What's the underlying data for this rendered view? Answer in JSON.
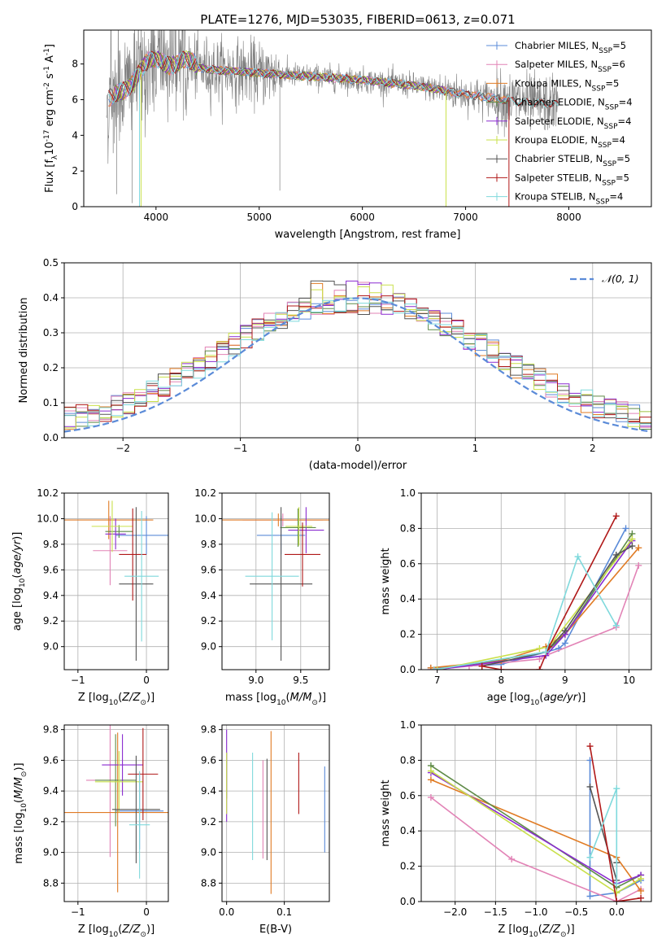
{
  "figure_title": "PLATE=1276, MJD=53035, FIBERID=0613, z=0.071",
  "colors": {
    "Chabrier MILES": "#5b8bd8",
    "Salpeter MILES": "#e283b6",
    "Kroupa MILES": "#e07b24",
    "Chabrier ELODIE": "#5f8b48",
    "Salpeter ELODIE": "#8a2bd0",
    "Kroupa ELODIE": "#c9e04a",
    "Chabrier STELIB": "#555555",
    "Salpeter STELIB": "#b01818",
    "Kroupa STELIB": "#7fd9dc",
    "data": "#7f7f7f",
    "gauss": "#5b8bd8",
    "grid": "#b0b0b0"
  },
  "chart_data": [
    {
      "id": "spectrum",
      "type": "line",
      "title": "PLATE=1276, MJD=53035, FIBERID=0613, z=0.071",
      "xlabel": "wavelength [Angstrom, rest frame]",
      "ylabel_parts": [
        "Flux [f",
        "λ",
        "10",
        "-17",
        " erg cm",
        "-2",
        " s",
        "-1",
        " A",
        "-1",
        "]"
      ],
      "xlim": [
        3300,
        8800
      ],
      "ylim": [
        0,
        9.9
      ],
      "xticks": [
        4000,
        5000,
        6000,
        7000,
        8000
      ],
      "yticks": [
        0,
        2,
        4,
        6,
        8
      ],
      "grid": false,
      "legend_position": "upper-right",
      "legend": [
        {
          "model": "Chabrier MILES",
          "nssp": "5"
        },
        {
          "model": "Salpeter MILES",
          "nssp": "6"
        },
        {
          "model": "Kroupa MILES",
          "nssp": "5"
        },
        {
          "model": "Chabrier ELODIE",
          "nssp": "4"
        },
        {
          "model": "Salpeter ELODIE",
          "nssp": "4"
        },
        {
          "model": "Kroupa ELODIE",
          "nssp": "4"
        },
        {
          "model": "Chabrier STELIB",
          "nssp": "5"
        },
        {
          "model": "Salpeter STELIB",
          "nssp": "5"
        },
        {
          "model": "Kroupa STELIB",
          "nssp": "4"
        }
      ],
      "legend_prefix": "N",
      "legend_sub": "SSP",
      "continuum": [
        [
          3520,
          5.6
        ],
        [
          3700,
          6.8
        ],
        [
          3900,
          7.8
        ],
        [
          4050,
          8.3
        ],
        [
          4200,
          8.1
        ],
        [
          4500,
          7.7
        ],
        [
          5000,
          7.5
        ],
        [
          5500,
          7.3
        ],
        [
          6000,
          7.1
        ],
        [
          6500,
          6.8
        ],
        [
          7000,
          6.3
        ],
        [
          7500,
          5.9
        ],
        [
          7900,
          5.7
        ]
      ],
      "data_range": [
        3520,
        7900
      ],
      "model_ranges": {
        "Chabrier MILES": [
          3540,
          7410
        ],
        "Salpeter MILES": [
          3540,
          7410
        ],
        "Kroupa MILES": [
          3540,
          7410
        ],
        "Chabrier ELODIE": [
          3600,
          6800
        ],
        "Salpeter ELODIE": [
          3600,
          6800
        ],
        "Kroupa ELODIE": [
          3600,
          6800
        ],
        "Chabrier STELIB": [
          3540,
          7900
        ],
        "Salpeter STELIB": [
          3540,
          7900
        ],
        "Kroupa STELIB": [
          3540,
          7900
        ]
      },
      "drops": [
        [
          3840,
          "Kroupa STELIB"
        ],
        [
          3855,
          "Kroupa ELODIE"
        ],
        [
          6810,
          "Kroupa ELODIE"
        ],
        [
          7420,
          "Salpeter STELIB"
        ]
      ]
    },
    {
      "id": "residuals",
      "type": "histogram",
      "xlabel": "(data-model)/error",
      "ylabel": "Normed distribution",
      "xlim": [
        -2.5,
        2.5
      ],
      "ylim": [
        0,
        0.5
      ],
      "xticks": [
        -2,
        -1,
        0,
        1,
        2
      ],
      "xtick_labels": [
        "−2",
        "−1",
        "0",
        "1",
        "2"
      ],
      "yticks": [
        0,
        0.1,
        0.2,
        0.3,
        0.4,
        0.5
      ],
      "ytick_labels": [
        "0.0",
        "0.1",
        "0.2",
        "0.3",
        "0.4",
        "0.5"
      ],
      "grid": true,
      "legend_position": "upper-right",
      "gauss_label": "𝒩(0, 1)",
      "bin_width": 0.1
    },
    {
      "id": "age_vs_z",
      "type": "errorbar",
      "xlabel": "Z [log10(Z/Z⊙)]",
      "ylabel": "age  [log10(age/yr)]",
      "xlim": [
        -1.2,
        0.32
      ],
      "ylim": [
        8.82,
        10.2
      ],
      "xticks": [
        -1,
        0
      ],
      "xtick_labels": [
        "−1",
        "0"
      ],
      "yticks": [
        9.0,
        9.2,
        9.4,
        9.6,
        9.8,
        10.0,
        10.2
      ],
      "ytick_labels": [
        "9.0",
        "9.2",
        "9.4",
        "9.6",
        "9.8",
        "10.0",
        "10.2"
      ],
      "grid": true,
      "points": [
        {
          "model": "Chabrier MILES",
          "x": 0.0,
          "xerr": 0.45,
          "y": 9.87,
          "yerr": 0.15
        },
        {
          "model": "Salpeter MILES",
          "x": -0.53,
          "xerr": 0.25,
          "y": 9.75,
          "yerr": 0.27
        },
        {
          "model": "Kroupa MILES",
          "x": -0.55,
          "xerr": 0.65,
          "y": 9.99,
          "yerr": 0.15
        },
        {
          "model": "Chabrier ELODIE",
          "x": -0.4,
          "xerr": 0.2,
          "y": 9.9,
          "yerr": 0.05
        },
        {
          "model": "Salpeter ELODIE",
          "x": -0.45,
          "xerr": 0.15,
          "y": 9.88,
          "yerr": 0.12
        },
        {
          "model": "Kroupa ELODIE",
          "x": -0.5,
          "xerr": 0.3,
          "y": 9.94,
          "yerr": 0.2
        },
        {
          "model": "Chabrier STELIB",
          "x": -0.15,
          "xerr": 0.25,
          "y": 9.49,
          "yerr": 0.6
        },
        {
          "model": "Salpeter STELIB",
          "x": -0.2,
          "xerr": 0.2,
          "y": 9.72,
          "yerr": 0.36
        },
        {
          "model": "Kroupa STELIB",
          "x": -0.07,
          "xerr": 0.25,
          "y": 9.55,
          "yerr": 0.51
        }
      ]
    },
    {
      "id": "age_vs_mass",
      "type": "errorbar",
      "xlabel": "mass [log10(M/M⊙)]",
      "xlim": [
        8.62,
        9.82
      ],
      "ylim": [
        8.82,
        10.2
      ],
      "xticks": [
        9.0,
        9.5
      ],
      "xtick_labels": [
        "9.0",
        "9.5"
      ],
      "yticks": [
        9.0,
        9.2,
        9.4,
        9.6,
        9.8,
        10.0,
        10.2
      ],
      "ytick_labels": [
        "9.0",
        "9.2",
        "9.4",
        "9.6",
        "9.8",
        "10.0",
        "10.2"
      ],
      "grid": true,
      "points": [
        {
          "model": "Chabrier MILES",
          "x": 9.28,
          "xerr": 0.27,
          "y": 9.87,
          "yerr": 0.15
        },
        {
          "model": "Salpeter MILES",
          "x": 9.3,
          "xerr": 0.45,
          "y": 9.99,
          "yerr": 0.05
        },
        {
          "model": "Kroupa MILES",
          "x": 9.25,
          "xerr": 0.65,
          "y": 9.99,
          "yerr": 0.05
        },
        {
          "model": "Chabrier ELODIE",
          "x": 9.47,
          "xerr": 0.2,
          "y": 9.93,
          "yerr": 0.15
        },
        {
          "model": "Salpeter ELODIE",
          "x": 9.56,
          "xerr": 0.2,
          "y": 9.91,
          "yerr": 0.18
        },
        {
          "model": "Kroupa ELODIE",
          "x": 9.48,
          "xerr": 0.15,
          "y": 9.94,
          "yerr": 0.15
        },
        {
          "model": "Chabrier STELIB",
          "x": 9.28,
          "xerr": 0.35,
          "y": 9.49,
          "yerr": 0.6
        },
        {
          "model": "Salpeter STELIB",
          "x": 9.52,
          "xerr": 0.2,
          "y": 9.72,
          "yerr": 0.25
        },
        {
          "model": "Kroupa STELIB",
          "x": 9.18,
          "xerr": 0.3,
          "y": 9.55,
          "yerr": 0.5
        }
      ]
    },
    {
      "id": "weight_vs_age",
      "type": "line",
      "xlabel": "age  [log10(age/yr)]",
      "ylabel": "mass weight",
      "xlim": [
        6.75,
        10.35
      ],
      "ylim": [
        0,
        1.0
      ],
      "xticks": [
        7,
        8,
        9,
        10
      ],
      "xtick_labels": [
        "7",
        "8",
        "9",
        "10"
      ],
      "yticks": [
        0,
        0.2,
        0.4,
        0.6,
        0.8,
        1.0
      ],
      "ytick_labels": [
        "0.0",
        "0.2",
        "0.4",
        "0.6",
        "0.8",
        "1.0"
      ],
      "grid": true,
      "series": [
        {
          "model": "Chabrier MILES",
          "x": [
            6.9,
            8.0,
            8.9,
            9.0,
            9.95
          ],
          "y": [
            0.01,
            0.03,
            0.12,
            0.15,
            0.8
          ]
        },
        {
          "model": "Salpeter MILES",
          "x": [
            6.9,
            7.5,
            8.6,
            8.7,
            9.8,
            10.15
          ],
          "y": [
            0.0,
            0.02,
            0.06,
            0.08,
            0.24,
            0.59
          ]
        },
        {
          "model": "Kroupa MILES",
          "x": [
            6.9,
            8.0,
            8.7,
            9.0,
            10.15
          ],
          "y": [
            0.01,
            0.05,
            0.13,
            0.2,
            0.69
          ]
        },
        {
          "model": "Chabrier ELODIE",
          "x": [
            7.0,
            8.7,
            9.0,
            10.05
          ],
          "y": [
            0.0,
            0.1,
            0.2,
            0.77
          ]
        },
        {
          "model": "Salpeter ELODIE",
          "x": [
            7.0,
            8.7,
            9.0,
            10.05
          ],
          "y": [
            0.0,
            0.08,
            0.2,
            0.73
          ]
        },
        {
          "model": "Kroupa ELODIE",
          "x": [
            7.0,
            8.6,
            8.75,
            10.05
          ],
          "y": [
            0.0,
            0.12,
            0.13,
            0.74
          ]
        },
        {
          "model": "Chabrier STELIB",
          "x": [
            7.7,
            8.7,
            9.0,
            9.8,
            10.05
          ],
          "y": [
            0.02,
            0.1,
            0.22,
            0.65,
            0.7
          ]
        },
        {
          "model": "Salpeter STELIB",
          "x": [
            7.7,
            8.0,
            8.6,
            8.75,
            9.8
          ],
          "y": [
            0.02,
            0.0,
            0.0,
            0.13,
            0.87
          ]
        },
        {
          "model": "Kroupa STELIB",
          "x": [
            6.95,
            8.7,
            9.2,
            9.8
          ],
          "y": [
            0.0,
            0.1,
            0.64,
            0.25
          ]
        }
      ]
    },
    {
      "id": "mass_vs_z",
      "type": "errorbar",
      "xlabel": "Z [log10(Z/Z⊙)]",
      "ylabel": "mass [log10(M/M⊙)]",
      "xlim": [
        -1.2,
        0.32
      ],
      "ylim": [
        8.68,
        9.83
      ],
      "xticks": [
        -1,
        0
      ],
      "xtick_labels": [
        "−1",
        "0"
      ],
      "yticks": [
        8.8,
        9.0,
        9.2,
        9.4,
        9.6,
        9.8
      ],
      "ytick_labels": [
        "8.8",
        "9.0",
        "9.2",
        "9.4",
        "9.6",
        "9.8"
      ],
      "grid": true,
      "points": [
        {
          "model": "Chabrier MILES",
          "x": -0.1,
          "xerr": 0.35,
          "y": 9.27,
          "yerr": 0.25
        },
        {
          "model": "Salpeter MILES",
          "x": -0.53,
          "xerr": 0.35,
          "y": 9.47,
          "yerr": 0.5
        },
        {
          "model": "Kroupa MILES",
          "x": -0.42,
          "xerr": 0.8,
          "y": 9.26,
          "yerr": 0.52
        },
        {
          "model": "Chabrier ELODIE",
          "x": -0.45,
          "xerr": 0.3,
          "y": 9.47,
          "yerr": 0.3
        },
        {
          "model": "Salpeter ELODIE",
          "x": -0.35,
          "xerr": 0.3,
          "y": 9.57,
          "yerr": 0.2
        },
        {
          "model": "Kroupa ELODIE",
          "x": -0.4,
          "xerr": 0.35,
          "y": 9.46,
          "yerr": 0.2
        },
        {
          "model": "Chabrier STELIB",
          "x": -0.15,
          "xerr": 0.35,
          "y": 9.28,
          "yerr": 0.35
        },
        {
          "model": "Salpeter STELIB",
          "x": -0.05,
          "xerr": 0.22,
          "y": 9.51,
          "yerr": 0.3
        },
        {
          "model": "Kroupa STELIB",
          "x": -0.1,
          "xerr": 0.15,
          "y": 9.18,
          "yerr": 0.35
        }
      ]
    },
    {
      "id": "mass_vs_ebv",
      "type": "errorbar",
      "xlabel": "E(B-V)",
      "xlim": [
        -0.008,
        0.178
      ],
      "ylim": [
        8.68,
        9.83
      ],
      "xticks": [
        0.0,
        0.1
      ],
      "xtick_labels": [
        "0.0",
        "0.1"
      ],
      "yticks": [
        8.8,
        9.0,
        9.2,
        9.4,
        9.6,
        9.8
      ],
      "ytick_labels": [
        "8.8",
        "9.0",
        "9.2",
        "9.4",
        "9.6",
        "9.8"
      ],
      "grid": true,
      "points": [
        {
          "model": "Chabrier MILES",
          "x": 0.17,
          "y": 9.28,
          "yerr": 0.28
        },
        {
          "model": "Salpeter MILES",
          "x": 0.063,
          "y": 9.28,
          "yerr": 0.32
        },
        {
          "model": "Kroupa MILES",
          "x": 0.077,
          "y": 9.26,
          "yerr": 0.53
        },
        {
          "model": "Chabrier ELODIE",
          "x": 0.0,
          "y": 9.5,
          "yerr": 0.15
        },
        {
          "model": "Salpeter ELODIE",
          "x": 0.0,
          "y": 9.5,
          "yerr": 0.3
        },
        {
          "model": "Kroupa ELODIE",
          "x": 0.0,
          "y": 9.45,
          "yerr": 0.2
        },
        {
          "model": "Chabrier STELIB",
          "x": 0.07,
          "y": 9.28,
          "yerr": 0.33
        },
        {
          "model": "Salpeter STELIB",
          "x": 0.125,
          "y": 9.45,
          "yerr": 0.2
        },
        {
          "model": "Kroupa STELIB",
          "x": 0.045,
          "y": 9.3,
          "yerr": 0.35
        }
      ]
    },
    {
      "id": "weight_vs_z",
      "type": "line",
      "xlabel": "Z [log10(Z/Z⊙)]",
      "ylabel": "mass weight",
      "xlim": [
        -2.42,
        0.43
      ],
      "ylim": [
        0,
        1.0
      ],
      "xticks": [
        -2.0,
        -1.5,
        -1.0,
        -0.5,
        0.0
      ],
      "xtick_labels": [
        "−2.0",
        "−1.5",
        "−1.0",
        "−0.5",
        "0.0"
      ],
      "yticks": [
        0,
        0.2,
        0.4,
        0.6,
        0.8,
        1.0
      ],
      "ytick_labels": [
        "0.0",
        "0.2",
        "0.4",
        "0.6",
        "0.8",
        "1.0"
      ],
      "grid": true,
      "series": [
        {
          "model": "Chabrier MILES",
          "x": [
            -0.33,
            -0.33,
            0.0,
            0.3
          ],
          "y": [
            0.8,
            0.03,
            0.05,
            0.12
          ]
        },
        {
          "model": "Salpeter MILES",
          "x": [
            -2.3,
            -1.3,
            0.0,
            0.3
          ],
          "y": [
            0.59,
            0.24,
            0.0,
            0.07
          ]
        },
        {
          "model": "Kroupa MILES",
          "x": [
            -2.3,
            0.0,
            0.3
          ],
          "y": [
            0.69,
            0.25,
            0.06
          ]
        },
        {
          "model": "Chabrier ELODIE",
          "x": [
            -2.3,
            0.0,
            0.3
          ],
          "y": [
            0.77,
            0.08,
            0.15
          ]
        },
        {
          "model": "Salpeter ELODIE",
          "x": [
            -2.3,
            0.0,
            0.3
          ],
          "y": [
            0.73,
            0.1,
            0.15
          ]
        },
        {
          "model": "Kroupa ELODIE",
          "x": [
            -2.3,
            0.0,
            0.3
          ],
          "y": [
            0.74,
            0.05,
            0.13
          ]
        },
        {
          "model": "Chabrier STELIB",
          "x": [
            -0.33,
            0.0,
            0.0
          ],
          "y": [
            0.65,
            0.12,
            0.22
          ]
        },
        {
          "model": "Salpeter STELIB",
          "x": [
            -0.33,
            0.0,
            0.3
          ],
          "y": [
            0.88,
            0.0,
            0.02
          ]
        },
        {
          "model": "Kroupa STELIB",
          "x": [
            -0.33,
            0.0,
            0.0
          ],
          "y": [
            0.25,
            0.64,
            0.1
          ]
        }
      ]
    }
  ]
}
